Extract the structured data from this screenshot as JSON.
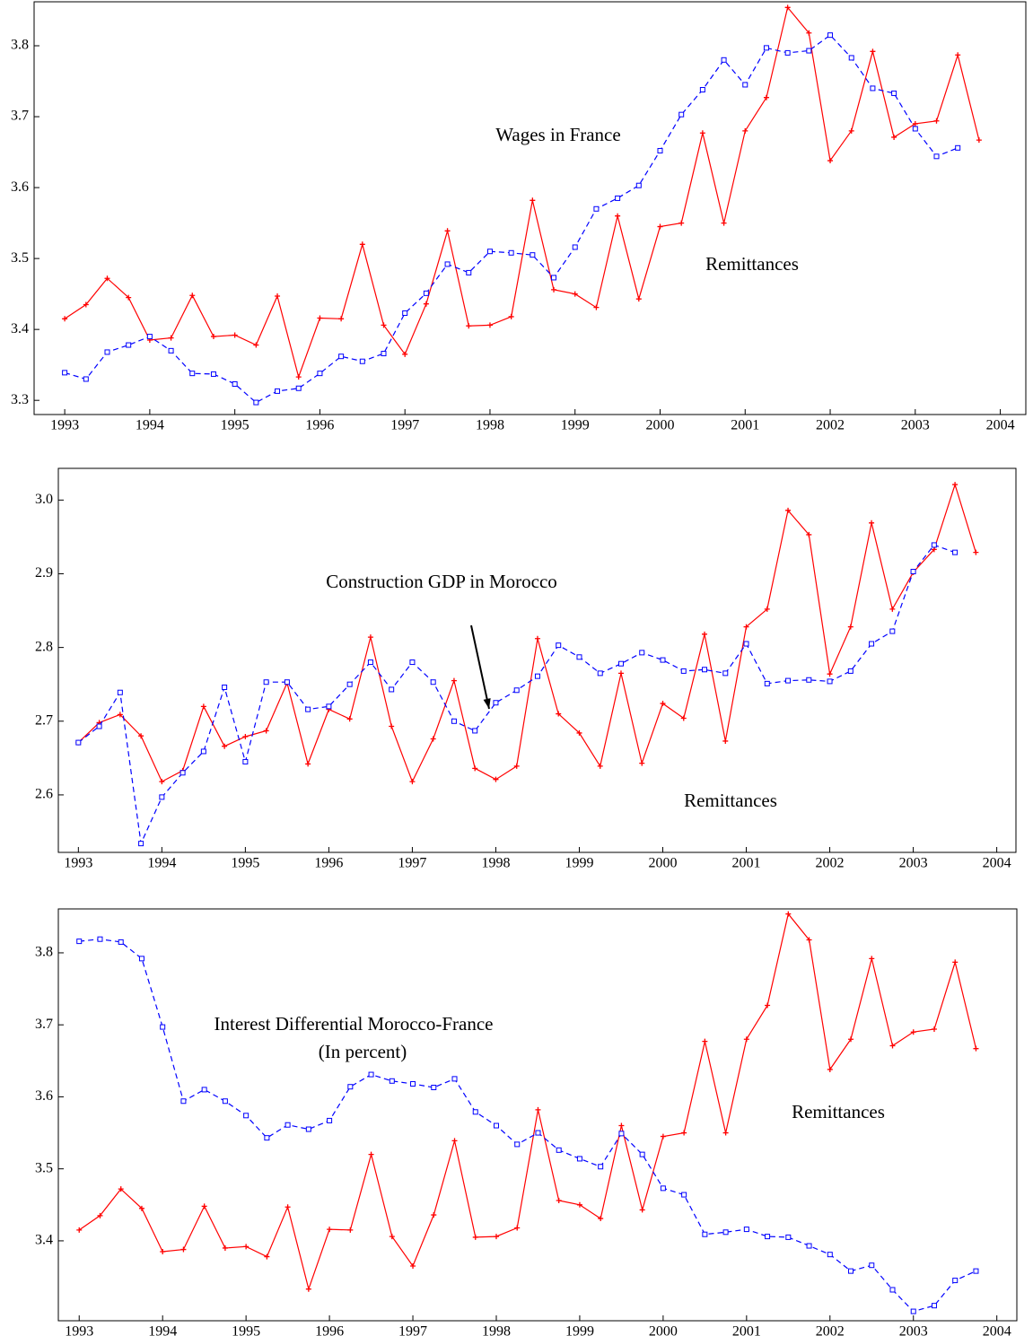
{
  "chart_data": [
    {
      "type": "line",
      "x": [
        1993,
        1993.25,
        1993.5,
        1993.75,
        1994,
        1994.25,
        1994.5,
        1994.75,
        1995,
        1995.25,
        1995.5,
        1995.75,
        1996,
        1996.25,
        1996.5,
        1996.75,
        1997,
        1997.25,
        1997.5,
        1997.75,
        1998,
        1998.25,
        1998.5,
        1998.75,
        1999,
        1999.25,
        1999.5,
        1999.75,
        2000,
        2000.25,
        2000.5,
        2000.75,
        2001,
        2001.25,
        2001.5,
        2001.75,
        2002,
        2002.25,
        2002.5,
        2002.75,
        2003,
        2003.25,
        2003.5,
        2003.75
      ],
      "series": [
        {
          "name": "Remittances",
          "color": "#ff0000",
          "values": [
            3.415,
            3.435,
            3.472,
            3.445,
            3.385,
            3.388,
            3.448,
            3.39,
            3.392,
            3.378,
            3.447,
            3.333,
            3.416,
            3.415,
            3.52,
            3.406,
            3.365,
            3.436,
            3.539,
            3.405,
            3.406,
            3.418,
            3.582,
            3.456,
            3.45,
            3.431,
            3.56,
            3.443,
            3.545,
            3.55,
            3.677,
            3.55,
            3.68,
            3.727,
            3.854,
            3.818,
            3.638,
            3.68,
            3.792,
            3.671,
            3.69,
            3.694,
            3.787,
            3.667
          ]
        },
        {
          "name": "Wages in France",
          "color": "#0000ff",
          "values": [
            3.339,
            3.33,
            3.368,
            3.378,
            3.39,
            3.37,
            3.338,
            3.337,
            3.323,
            3.297,
            3.313,
            3.317,
            3.338,
            3.362,
            3.355,
            3.366,
            3.423,
            3.451,
            3.492,
            3.48,
            3.51,
            3.508,
            3.505,
            3.473,
            3.516,
            3.57,
            3.585,
            3.603,
            3.652,
            3.703,
            3.738,
            3.78,
            3.745,
            3.797,
            3.79,
            3.793,
            3.815,
            3.783,
            3.74,
            3.733,
            3.683,
            3.644,
            3.656,
            null
          ]
        }
      ],
      "xlim": [
        1992.64,
        2004.3
      ],
      "xticks": [
        1993,
        1994,
        1995,
        1996,
        1997,
        1998,
        1999,
        2000,
        2001,
        2002,
        2003,
        2004
      ],
      "ylim": [
        3.28,
        3.862
      ],
      "yticks": [
        3.3,
        3.4,
        3.5,
        3.6,
        3.7,
        3.8
      ]
    },
    {
      "type": "line",
      "x": [
        1993,
        1993.25,
        1993.5,
        1993.75,
        1994,
        1994.25,
        1994.5,
        1994.75,
        1995,
        1995.25,
        1995.5,
        1995.75,
        1996,
        1996.25,
        1996.5,
        1996.75,
        1997,
        1997.25,
        1997.5,
        1997.75,
        1998,
        1998.25,
        1998.5,
        1998.75,
        1999,
        1999.25,
        1999.5,
        1999.75,
        2000,
        2000.25,
        2000.5,
        2000.75,
        2001,
        2001.25,
        2001.5,
        2001.75,
        2002,
        2002.25,
        2002.5,
        2002.75,
        2003,
        2003.25,
        2003.5,
        2003.75
      ],
      "series": [
        {
          "name": "Remittances",
          "color": "#ff0000",
          "values": [
            2.671,
            2.698,
            2.709,
            2.68,
            2.618,
            2.633,
            2.72,
            2.666,
            2.679,
            2.687,
            2.752,
            2.642,
            2.716,
            2.703,
            2.814,
            2.693,
            2.618,
            2.676,
            2.755,
            2.636,
            2.621,
            2.639,
            2.812,
            2.71,
            2.684,
            2.639,
            2.765,
            2.643,
            2.724,
            2.704,
            2.818,
            2.673,
            2.828,
            2.852,
            2.986,
            2.953,
            2.764,
            2.828,
            2.969,
            2.852,
            2.902,
            2.933,
            3.021,
            2.929
          ]
        },
        {
          "name": "Construction GDP in Morocco",
          "color": "#0000ff",
          "values": [
            2.671,
            2.693,
            2.739,
            2.534,
            2.597,
            2.63,
            2.659,
            2.746,
            2.645,
            2.753,
            2.753,
            2.716,
            2.72,
            2.75,
            2.78,
            2.743,
            2.78,
            2.753,
            2.7,
            2.687,
            2.725,
            2.742,
            2.761,
            2.803,
            2.787,
            2.765,
            2.778,
            2.793,
            2.783,
            2.768,
            2.77,
            2.765,
            2.805,
            2.751,
            2.755,
            2.756,
            2.754,
            2.768,
            2.805,
            2.822,
            2.903,
            2.939,
            2.929,
            null
          ]
        }
      ],
      "xlim": [
        1992.76,
        2004.23
      ],
      "xticks": [
        1993,
        1994,
        1995,
        1996,
        1997,
        1998,
        1999,
        2000,
        2001,
        2002,
        2003,
        2004
      ],
      "ylim": [
        2.522,
        3.043
      ],
      "yticks": [
        2.6,
        2.7,
        2.8,
        2.9,
        {
          "value": 3.0,
          "label": "3.0"
        }
      ]
    },
    {
      "type": "line",
      "x": [
        1993,
        1993.25,
        1993.5,
        1993.75,
        1994,
        1994.25,
        1994.5,
        1994.75,
        1995,
        1995.25,
        1995.5,
        1995.75,
        1996,
        1996.25,
        1996.5,
        1996.75,
        1997,
        1997.25,
        1997.5,
        1997.75,
        1998,
        1998.25,
        1998.5,
        1998.75,
        1999,
        1999.25,
        1999.5,
        1999.75,
        2000,
        2000.25,
        2000.5,
        2000.75,
        2001,
        2001.25,
        2001.5,
        2001.75,
        2002,
        2002.25,
        2002.5,
        2002.75,
        2003,
        2003.25,
        2003.5,
        2003.75
      ],
      "series": [
        {
          "name": "Remittances",
          "color": "#ff0000",
          "values": [
            3.415,
            3.435,
            3.472,
            3.445,
            3.385,
            3.388,
            3.448,
            3.39,
            3.392,
            3.378,
            3.447,
            3.333,
            3.416,
            3.415,
            3.52,
            3.406,
            3.365,
            3.436,
            3.539,
            3.405,
            3.406,
            3.418,
            3.582,
            3.456,
            3.45,
            3.431,
            3.56,
            3.443,
            3.545,
            3.55,
            3.677,
            3.55,
            3.68,
            3.727,
            3.854,
            3.818,
            3.638,
            3.68,
            3.792,
            3.671,
            3.69,
            3.694,
            3.787,
            3.667
          ]
        },
        {
          "name": "Interest Differential Morocco-France",
          "unit": "(In percent)",
          "color": "#0000ff",
          "values": [
            3.816,
            3.819,
            3.815,
            3.792,
            3.697,
            3.594,
            3.61,
            3.594,
            3.574,
            3.543,
            3.561,
            3.555,
            3.567,
            3.614,
            3.631,
            3.622,
            3.618,
            3.613,
            3.625,
            3.579,
            3.56,
            3.534,
            3.55,
            3.526,
            3.514,
            3.503,
            3.549,
            3.52,
            3.473,
            3.464,
            3.409,
            3.412,
            3.416,
            3.406,
            3.405,
            3.393,
            3.381,
            3.358,
            3.366,
            3.332,
            3.302,
            3.31,
            3.345,
            3.358
          ]
        }
      ],
      "xlim": [
        1992.75,
        2004.24
      ],
      "xticks": [
        1993,
        1994,
        1995,
        1996,
        1997,
        1998,
        1999,
        2000,
        2001,
        2002,
        2003,
        2004
      ],
      "ylim": [
        3.289,
        3.861
      ],
      "yticks": [
        3.4,
        3.5,
        3.6,
        3.7,
        3.8
      ]
    }
  ]
}
